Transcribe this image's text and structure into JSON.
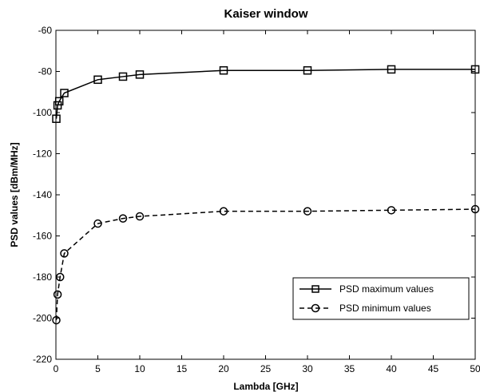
{
  "chart_data": {
    "type": "line",
    "title": "Kaiser window",
    "xlabel": "Lambda  [GHz]",
    "ylabel": "PSD values  [dBm/MHz]",
    "xlim": [
      0,
      50
    ],
    "ylim": [
      -220,
      -60
    ],
    "xticks": [
      0,
      5,
      10,
      15,
      20,
      25,
      30,
      35,
      40,
      45,
      50
    ],
    "yticks": [
      -60,
      -80,
      -100,
      -120,
      -140,
      -160,
      -180,
      -200,
      -220
    ],
    "grid": false,
    "legend_position": "lower-right",
    "series": [
      {
        "name": "PSD maximum values",
        "line_style": "solid",
        "marker": "square",
        "color": "#000000",
        "x": [
          0.05,
          0.2,
          0.4,
          1,
          5,
          8,
          10,
          20,
          30,
          40,
          50
        ],
        "y": [
          -103,
          -96.5,
          -94.5,
          -90.5,
          -84,
          -82.5,
          -81.5,
          -79.5,
          -79.5,
          -79,
          -79
        ]
      },
      {
        "name": "PSD minimum values",
        "line_style": "dashed",
        "marker": "circle",
        "color": "#000000",
        "x": [
          0.05,
          0.2,
          0.5,
          1,
          5,
          8,
          10,
          20,
          30,
          40,
          50
        ],
        "y": [
          -201,
          -188.5,
          -180,
          -168.5,
          -154,
          -151.5,
          -150.5,
          -148,
          -148,
          -147.5,
          -147
        ]
      }
    ]
  }
}
